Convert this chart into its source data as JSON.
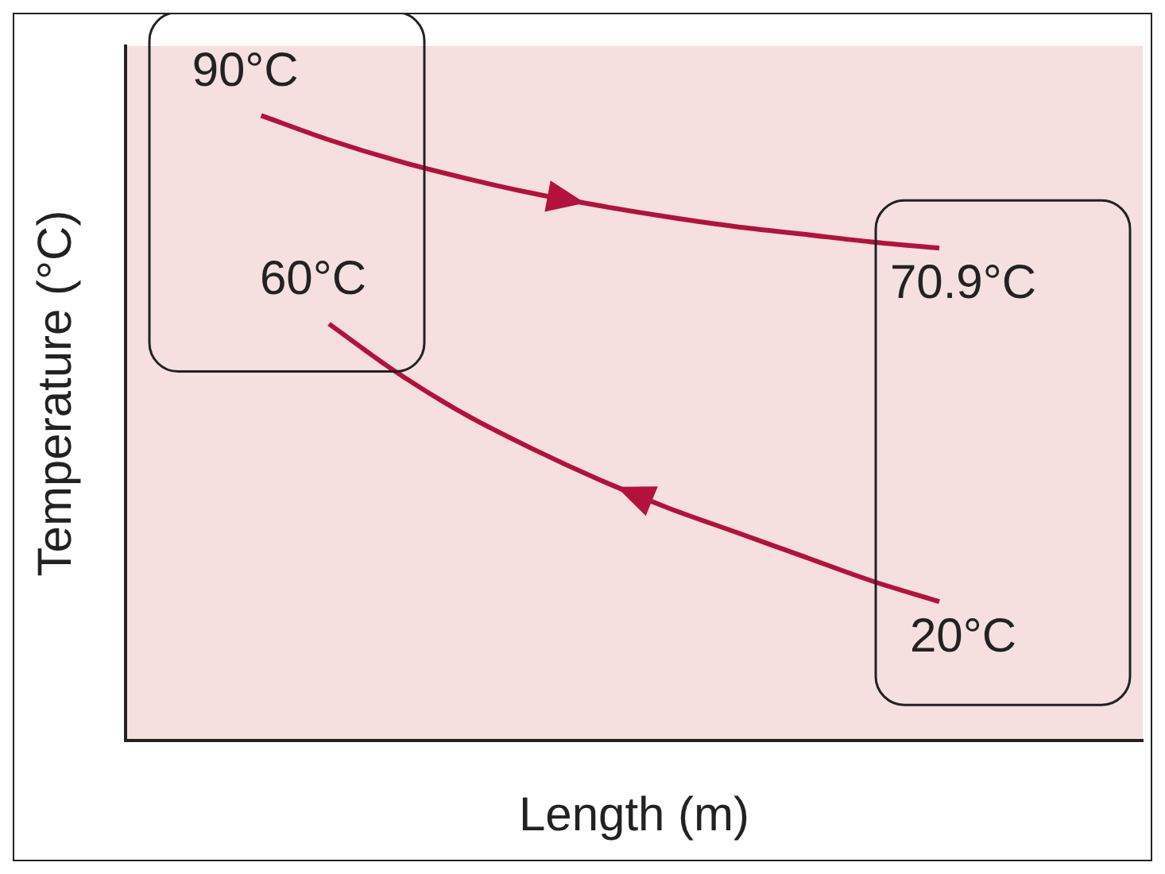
{
  "chart_data": {
    "type": "line",
    "ylim": [
      0,
      100
    ],
    "xlabel": "Length (m)",
    "ylabel": "Temperature (°C)",
    "categories": [
      null,
      null,
      null,
      null,
      null,
      null,
      null,
      null,
      null,
      null,
      null,
      null,
      null,
      null,
      null,
      null
    ],
    "series": [
      {
        "color": "#b3123c",
        "values": [
          null,
          null,
          90,
          86.5,
          83.5,
          81,
          78.8,
          77,
          75.4,
          74,
          72.9,
          71.8,
          70.9,
          null,
          null,
          null
        ],
        "value_labels": [
          null,
          null,
          "90°C",
          null,
          null,
          null,
          null,
          null,
          null,
          null,
          null,
          null,
          "70.9°C",
          null,
          null,
          null
        ]
      },
      {
        "color": "#b3123c",
        "values": [
          null,
          null,
          null,
          60,
          53,
          47,
          42,
          37.5,
          33.5,
          30,
          26.5,
          23,
          20,
          null,
          null,
          null
        ],
        "value_labels": [
          null,
          null,
          null,
          "60°C",
          null,
          null,
          null,
          null,
          null,
          null,
          null,
          null,
          "20°C",
          null,
          null,
          null
        ]
      }
    ],
    "grid": false,
    "legend": false,
    "marker": "none",
    "line_style": "solid"
  }
}
